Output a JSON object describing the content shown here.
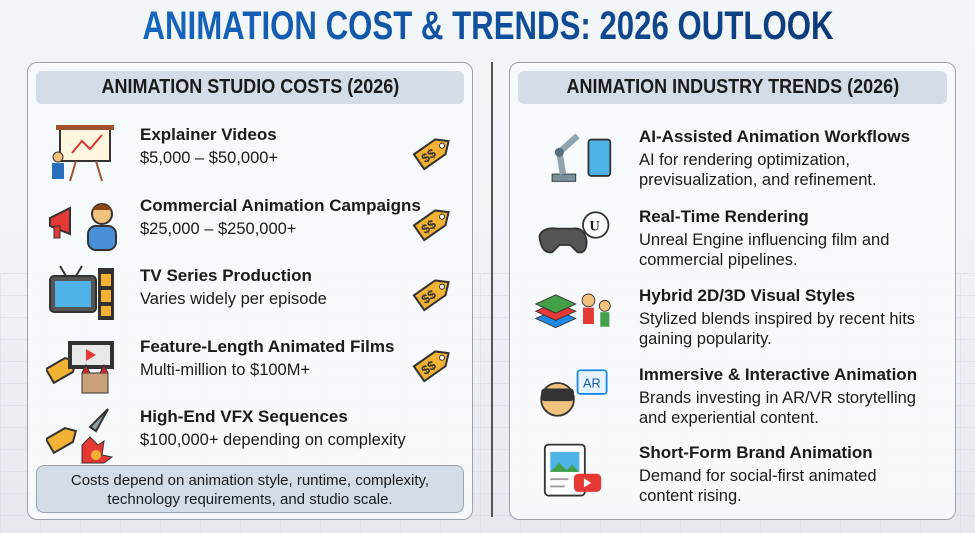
{
  "title": "ANIMATION COST & TRENDS: 2026 OUTLOOK",
  "left": {
    "heading": "ANIMATION STUDIO COSTS (2026)",
    "items": [
      {
        "title": "Explainer Videos",
        "detail": "$5,000 – $50,000+",
        "icon": "presentation-board-icon"
      },
      {
        "title": "Commercial Animation Campaigns",
        "detail": "$25,000 – $250,000+",
        "icon": "megaphone-person-icon"
      },
      {
        "title": "TV Series Production",
        "detail": "Varies widely per episode",
        "icon": "tv-film-icon"
      },
      {
        "title": "Feature-Length Animated Films",
        "detail": "Multi-million to $100M+",
        "icon": "film-castle-icon"
      },
      {
        "title": "High-End VFX Sequences",
        "detail": "$100,000+ depending on complexity",
        "icon": "rocket-explosion-icon"
      }
    ],
    "tag_label": "$$",
    "note": "Costs depend on animation style, runtime, complexity, technology requirements, and studio scale."
  },
  "right": {
    "heading": "ANIMATION INDUSTRY TRENDS (2026)",
    "items": [
      {
        "title": "AI-Assisted Animation Workflows",
        "detail": [
          "AI for rendering optimization,",
          "previsualization, and refinement."
        ],
        "icon": "robot-arm-tablet-icon"
      },
      {
        "title": "Real-Time Rendering",
        "detail": [
          "Unreal Engine influencing film and",
          "commercial pipelines."
        ],
        "icon": "gamepad-unreal-icon"
      },
      {
        "title": "Hybrid 2D/3D Visual Styles",
        "detail": [
          "Stylized blends inspired by recent hits",
          "gaining popularity."
        ],
        "icon": "layers-characters-icon"
      },
      {
        "title": "Immersive & Interactive Animation",
        "detail": [
          "Brands investing in AR/VR storytelling",
          "and experiential content."
        ],
        "icon": "vr-headset-icon",
        "icon_label": "AR"
      },
      {
        "title": "Short-Form Brand Animation",
        "detail": [
          "Demand for social-first animated",
          "content rising."
        ],
        "icon": "social-video-icon"
      }
    ]
  },
  "colors": {
    "title_blue": "#1565c0",
    "header_bg": "#d3dde7",
    "tag": "#f2b233"
  }
}
